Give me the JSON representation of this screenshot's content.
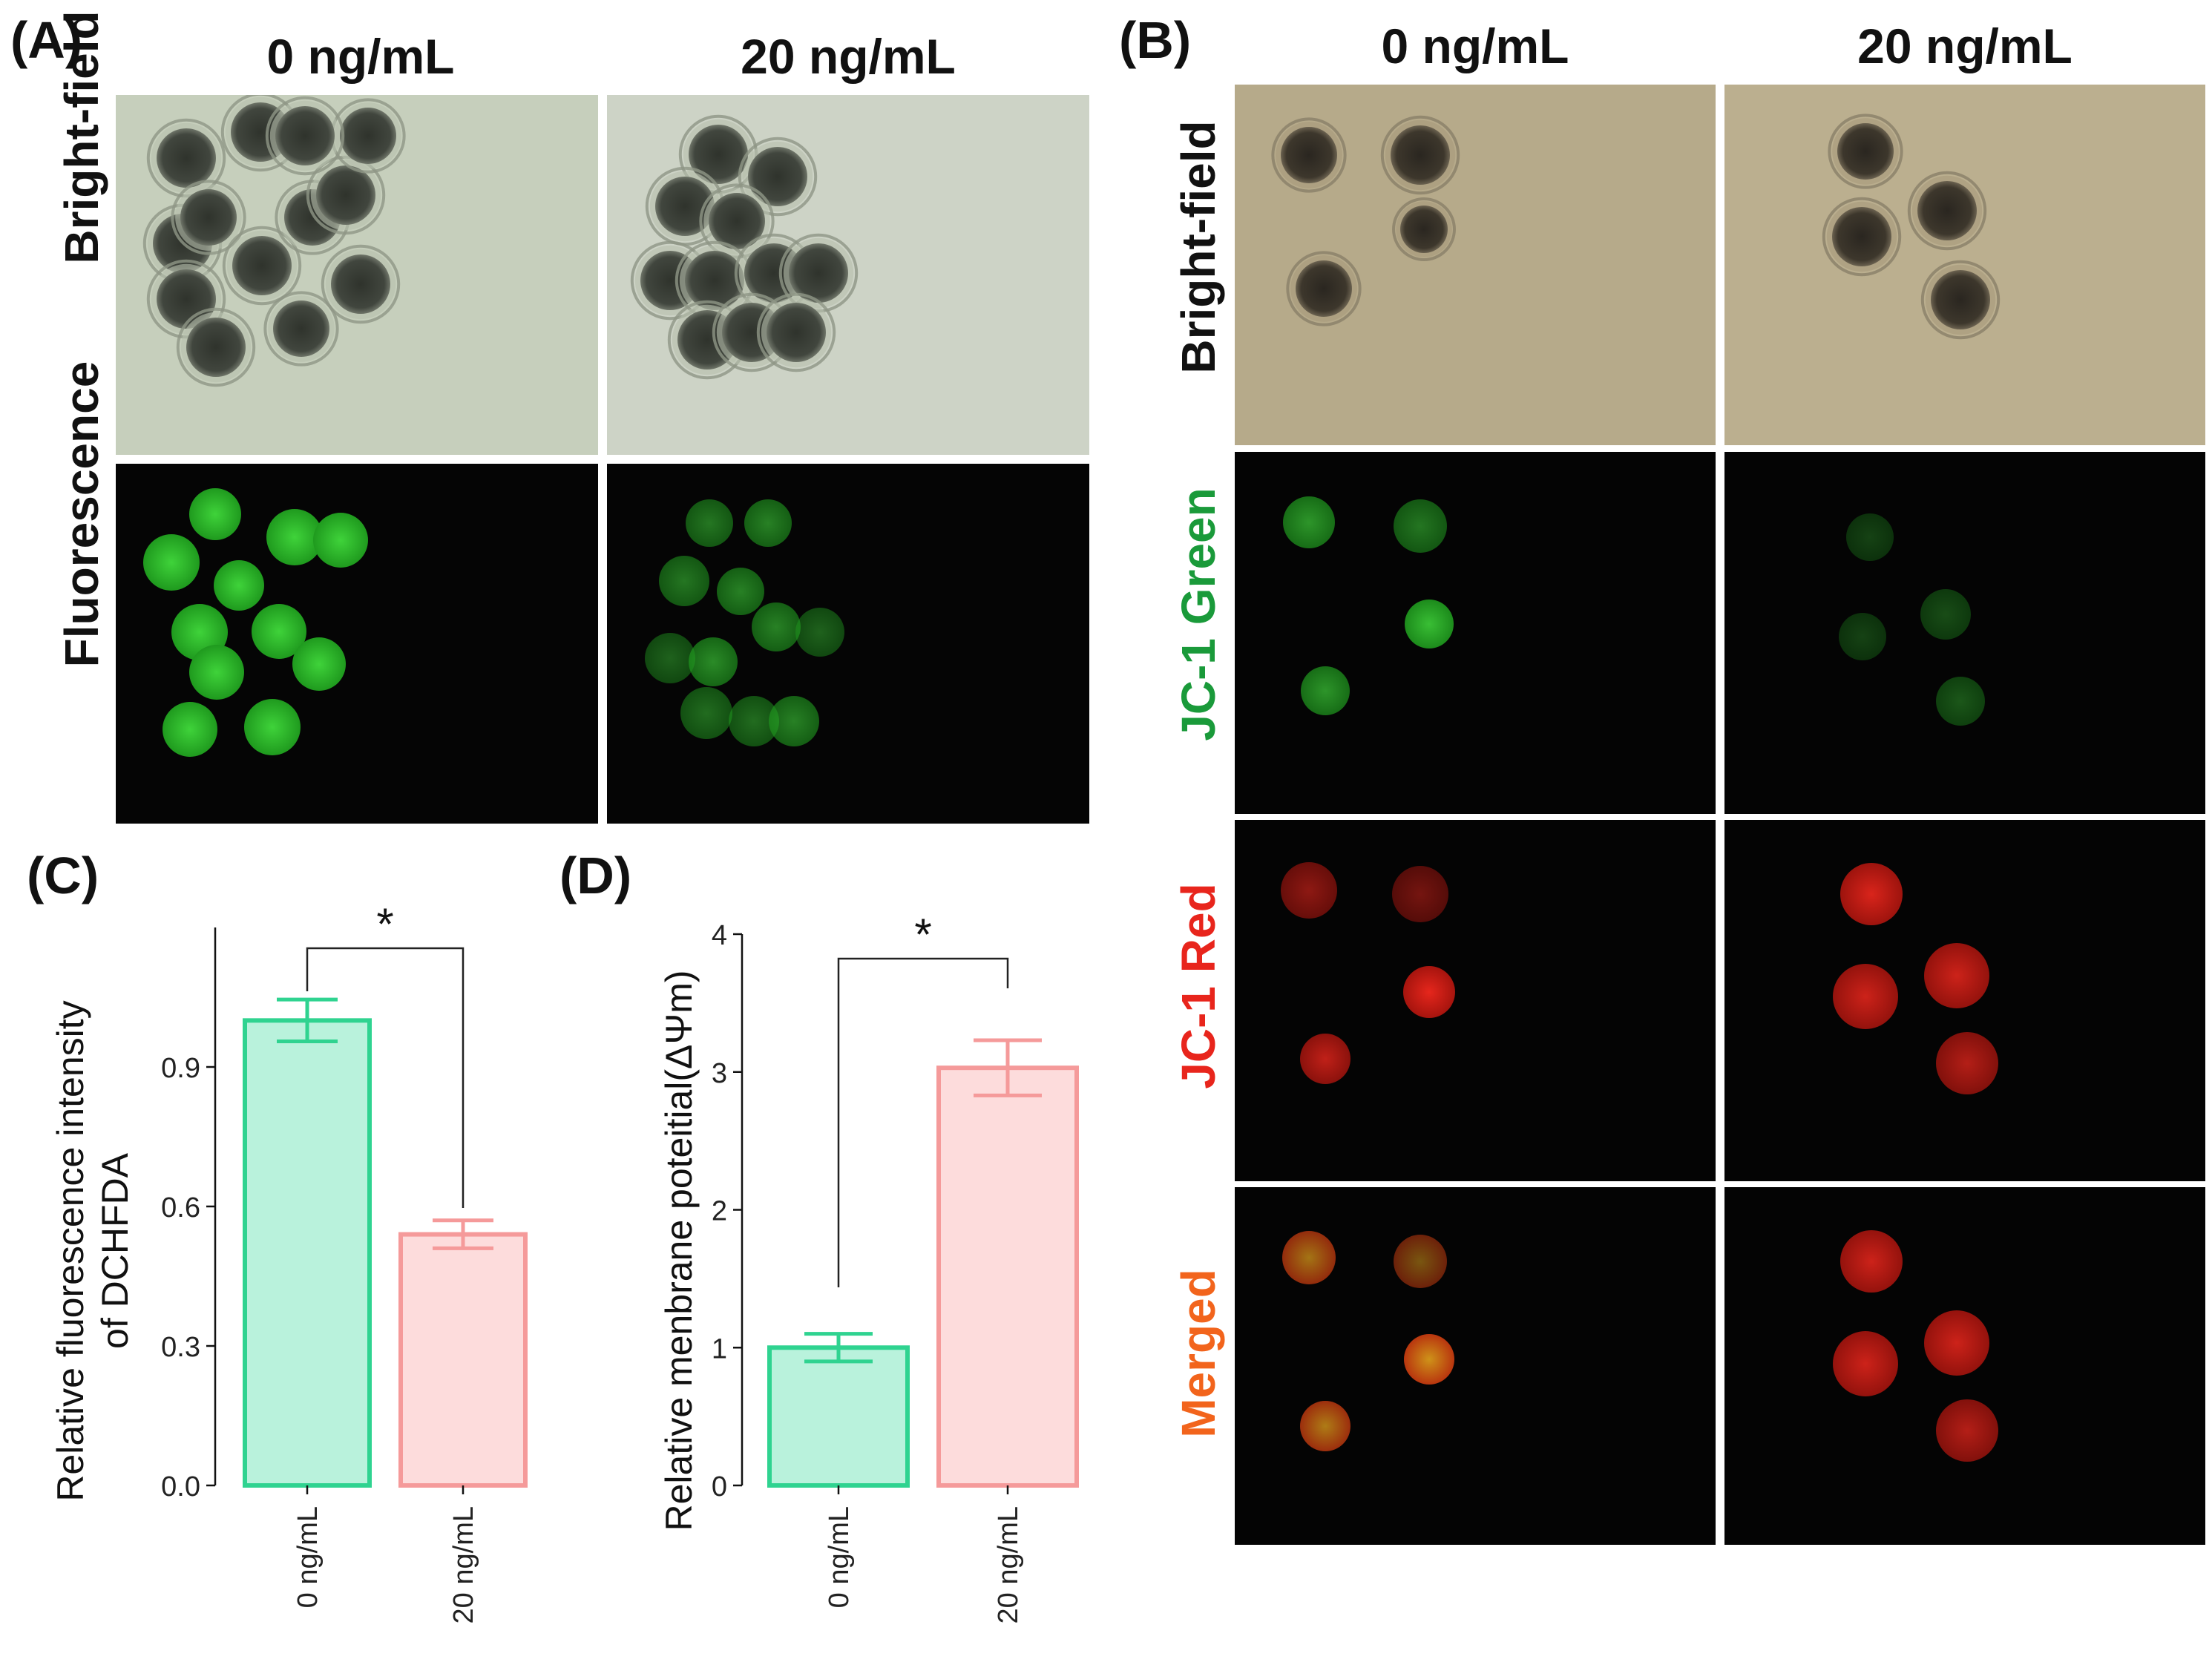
{
  "panels": {
    "A": {
      "label": "(A)",
      "columns": [
        "0 ng/mL",
        "20 ng/mL"
      ],
      "rows": [
        {
          "title": "Bright-field",
          "color": "#111111"
        },
        {
          "title": "Fluorescence",
          "color": "#111111"
        }
      ]
    },
    "B": {
      "label": "(B)",
      "columns": [
        "0 ng/mL",
        "20 ng/mL"
      ],
      "rows": [
        {
          "title": "Bright-field",
          "color": "#111111"
        },
        {
          "title_parts": [
            "JC-1 ",
            "Green"
          ],
          "colors": [
            "#1a9a3a",
            "#1a9a3a"
          ]
        },
        {
          "title_parts": [
            "JC-1 ",
            "Red"
          ],
          "colors": [
            "#e8251c",
            "#e8251c"
          ]
        },
        {
          "title": "Merged",
          "color": "#f2641c"
        }
      ]
    },
    "C": {
      "label": "(C)"
    },
    "D": {
      "label": "(D)"
    }
  },
  "colors": {
    "green_bar_fill": "#b9f2dc",
    "green_bar_stroke": "#2fd390",
    "pink_bar_fill": "#fddcdc",
    "pink_bar_stroke": "#f59a9a",
    "brightfield_A": "#c9d2c0",
    "brightfield_B": "#b9ac8c",
    "fluor_green": "#2fbf2a",
    "jc1_red": "#e8221c"
  },
  "chart_data": [
    {
      "type": "bar",
      "panel": "C",
      "categories": [
        "0 ng/mL",
        "20 ng/mL"
      ],
      "values": [
        1.0,
        0.54
      ],
      "errors": [
        0.045,
        0.03
      ],
      "ylabel": "Relative fluorescence intensity\nof DCHFDA",
      "ylabel_lines": [
        "Relative fluorescence intensity",
        "of DCHFDA"
      ],
      "ylim": [
        0,
        1.2
      ],
      "yticks": [
        0.0,
        0.3,
        0.6,
        0.9
      ],
      "ytick_labels": [
        "0.0",
        "0.3",
        "0.6",
        "0.9"
      ],
      "significance": "*",
      "grid": false
    },
    {
      "type": "bar",
      "panel": "D",
      "categories": [
        "0 ng/mL",
        "20 ng/mL"
      ],
      "values": [
        1.0,
        3.03
      ],
      "errors": [
        0.1,
        0.2
      ],
      "ylabel": "Relative menbrane poteitial(ΔΨm)",
      "ylabel_lines": [
        "Relative menbrane poteitial(ΔΨm)"
      ],
      "ylim": [
        0,
        4
      ],
      "yticks": [
        0,
        1,
        2,
        3,
        4
      ],
      "ytick_labels": [
        "0",
        "1",
        "2",
        "3",
        "4"
      ],
      "significance": "*",
      "grid": false
    }
  ]
}
